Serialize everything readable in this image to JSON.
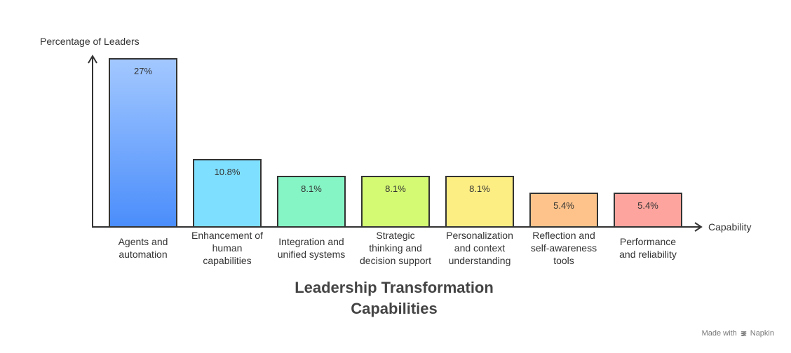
{
  "chart_data": {
    "type": "bar",
    "title": [
      "Leadership Transformation",
      "Capabilities"
    ],
    "ylabel": "Percentage of Leaders",
    "xlabel": "Capability",
    "ylim": [
      0,
      27
    ],
    "grid": false,
    "categories": [
      [
        "Agents and",
        "automation"
      ],
      [
        "Enhancement of",
        "human",
        "capabilities"
      ],
      [
        "Integration and",
        "unified systems"
      ],
      [
        "Strategic",
        "thinking and",
        "decision support"
      ],
      [
        "Personalization",
        "and context",
        "understanding"
      ],
      [
        "Reflection and",
        "self-awareness",
        "tools"
      ],
      [
        "Performance",
        "and reliability"
      ]
    ],
    "values": [
      27,
      10.8,
      8.1,
      8.1,
      8.1,
      5.4,
      5.4
    ],
    "value_labels": [
      "27%",
      "10.8%",
      "8.1%",
      "8.1%",
      "8.1%",
      "5.4%",
      "5.4%"
    ],
    "colors": [
      [
        "#a3c8ff",
        "#4a8dfb"
      ],
      [
        "#7fdfff",
        "#7fdfff"
      ],
      [
        "#86f5c5",
        "#86f5c5"
      ],
      [
        "#d4fa73",
        "#d4fa73"
      ],
      [
        "#fdee84",
        "#fdee84"
      ],
      [
        "#fdc38a",
        "#fdc38a"
      ],
      [
        "#fca49d",
        "#fca49d"
      ]
    ]
  },
  "footer": {
    "made_with": "Made with",
    "brand": "Napkin"
  }
}
